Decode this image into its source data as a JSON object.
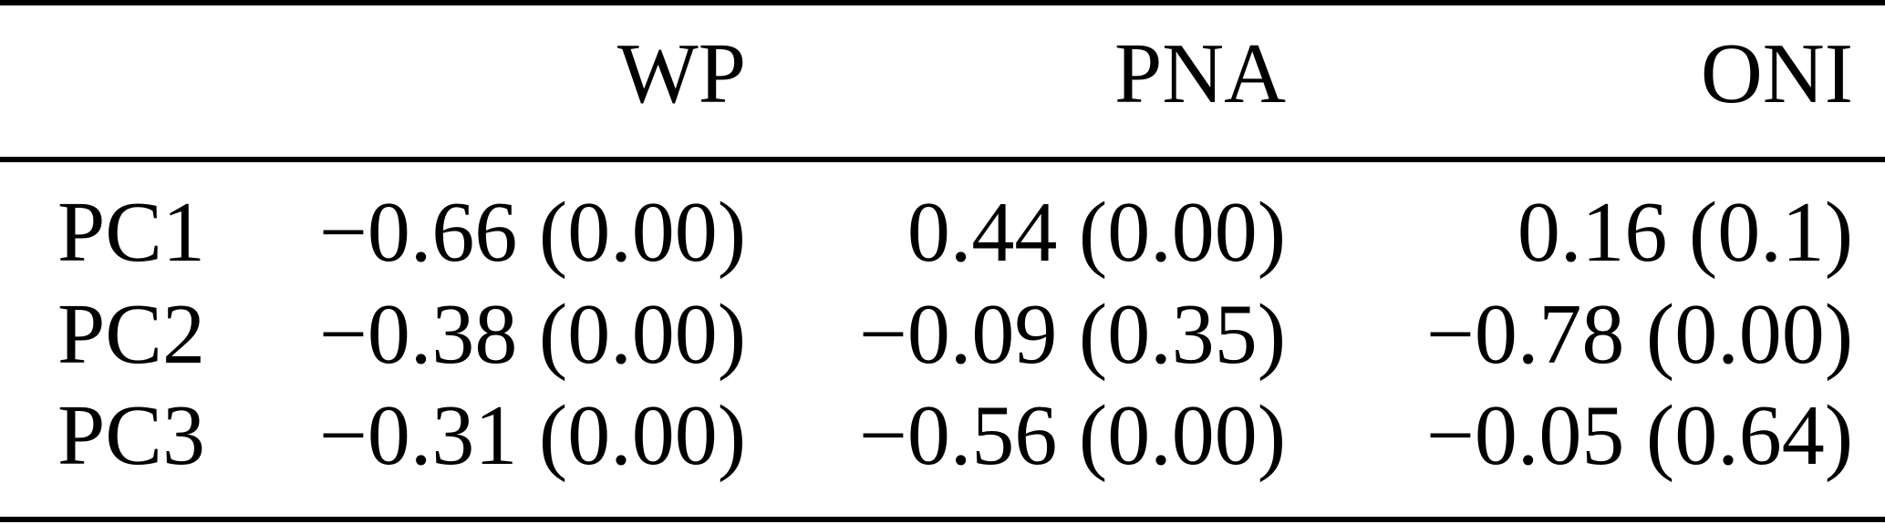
{
  "page": {
    "background_color": "#ffffff",
    "text_color": "#000000",
    "rule_color": "#000000"
  },
  "table": {
    "header": {
      "label": "",
      "wp": "WP",
      "pna": "PNA",
      "oni": "ONI"
    },
    "rows": [
      {
        "label": "PC1",
        "wp": "−0.66 (0.00)",
        "pna": "0.44 (0.00)",
        "oni": "0.16 (0.1)"
      },
      {
        "label": "PC2",
        "wp": "−0.38 (0.00)",
        "pna": "−0.09 (0.35)",
        "oni": "−0.78 (0.00)"
      },
      {
        "label": "PC3",
        "wp": "−0.31 (0.00)",
        "pna": "−0.56 (0.00)",
        "oni": "−0.05 (0.64)"
      }
    ]
  },
  "chart_data": {
    "type": "table",
    "columns": [
      "",
      "WP",
      "PNA",
      "ONI"
    ],
    "row_labels": [
      "PC1",
      "PC2",
      "PC3"
    ],
    "cell_format": "correlation (p-value)",
    "correlations": {
      "WP": [
        -0.66,
        -0.38,
        -0.31
      ],
      "PNA": [
        0.44,
        -0.09,
        -0.56
      ],
      "ONI": [
        0.16,
        -0.78,
        -0.05
      ]
    },
    "p_values": {
      "WP": [
        0.0,
        0.0,
        0.0
      ],
      "PNA": [
        0.0,
        0.35,
        0.0
      ],
      "ONI": [
        0.1,
        0.0,
        0.64
      ]
    }
  }
}
